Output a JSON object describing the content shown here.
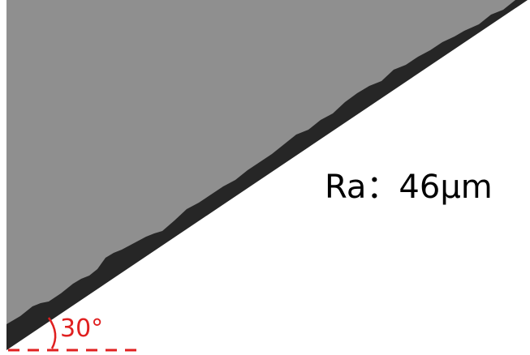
{
  "roughness_label": "Ra：46μm",
  "angle_label": "30°"
}
